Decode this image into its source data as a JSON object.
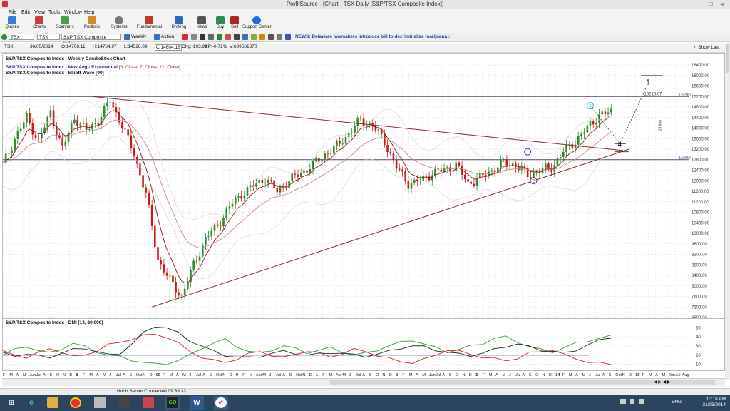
{
  "window": {
    "title": "ProfitSource - [Chart - TSX Daily [S&P/TSX Composite Index]]",
    "minimize": "–",
    "maximize": "□",
    "close": "×"
  },
  "menu": [
    "File",
    "Edit",
    "View",
    "Tools",
    "Window",
    "Help"
  ],
  "toolbar": [
    {
      "label": "Quotes",
      "icon": "quotes-icon",
      "color": "#3a7bd5"
    },
    {
      "label": "Charts",
      "icon": "charts-icon",
      "color": "#cc3b3b"
    },
    {
      "label": "Scanners",
      "icon": "scanners-icon",
      "color": "#4aa04a"
    },
    {
      "label": "Portfolio",
      "icon": "portfolio-icon",
      "color": "#d08a2b"
    },
    {
      "label": "Systems",
      "icon": "systems-icon",
      "color": "#777777"
    },
    {
      "label": "Fundamental",
      "icon": "fundamental-icon",
      "color": "#c0392b"
    },
    {
      "label": "Broking",
      "icon": "broking-icon",
      "color": "#2a6db0"
    },
    {
      "label": "News",
      "icon": "news-icon",
      "color": "#555555"
    },
    {
      "label": "Buy",
      "icon": "buy-icon",
      "color": "#2e8b57"
    },
    {
      "label": "Sell",
      "icon": "sell-icon",
      "color": "#b22222"
    },
    {
      "label": "Support Center",
      "icon": "support-icon",
      "color": "#1e6fd9"
    }
  ],
  "selector": {
    "symbol": "TSX",
    "exchange": "TSX",
    "name": "S&P/TSX Composite Index",
    "period": "Weekly",
    "action": "Action",
    "news": "NEWS: Delaware lawmakers introduce bill to decriminalize marijuana :"
  },
  "info": {
    "symbol": "TSX",
    "date": "30/05/2014",
    "open": "O:14708.11",
    "high": "H:14764.97",
    "low": "L:14528.09",
    "close": "C:14604.16",
    "change": "Chg:-103.94",
    "changepct": "CP:-0.71%",
    "volume": "V:699581370",
    "show_last": "Show Last"
  },
  "legends": {
    "l1": "S&P/TSX Composite Index - Weekly CandleStick Chart",
    "l2": "S&P/TSX Composite Index - Mov Avg - Exponential",
    "l2b": "[3, Close, 7, Close, 21, Close]",
    "l3": "S&P/TSX Composite Index - Elliott Wave [90]",
    "dmi": "S&P/TSX Composite Index - DMI [14, 20.000]"
  },
  "annotations": {
    "wave5": "5",
    "wave4": "4",
    "wave3": "3",
    "wave1": "1",
    "wave2": "2",
    "target": "15216.07",
    "datelabel": "26 Mar",
    "hline1": "15200",
    "hline2": "12800"
  },
  "colors": {
    "bull": "#2e8b2e",
    "bear": "#cc1a1a",
    "ema_fast": "#8b1a1a",
    "ema_slow": "#cc8888",
    "trend": "#8b2a2a",
    "hline": "#4a4a6a",
    "dmi_plus": "#2e9e2e",
    "dmi_minus": "#d02020",
    "adx": "#222222",
    "dmi_ref": "#2222aa"
  },
  "status": "Hubb Server Connected 09:39:33",
  "taskbar": {
    "lang": "ENG",
    "time": "10:18 AM",
    "date": "31/05/2014"
  },
  "chart_data": [
    {
      "type": "candlestick",
      "title": "S&P/TSX Composite Index - Weekly CandleStick Chart",
      "y_ticks": [
        6800,
        7200,
        7600,
        8000,
        8400,
        8800,
        9200,
        9600,
        10000,
        10400,
        10800,
        11200,
        11600,
        12000,
        12400,
        12800,
        13200,
        13600,
        14000,
        14400,
        14800,
        15200,
        15600,
        16000,
        16400
      ],
      "ylim": [
        6800,
        16400
      ],
      "x_ticks": [
        "F",
        "M",
        "A",
        "M",
        "Jun",
        "Jul",
        "A",
        "S",
        "O",
        "N",
        "D",
        "8",
        "F",
        "M",
        "A",
        "M",
        "J",
        "Jul",
        "A",
        "S",
        "Oct",
        "N",
        "D",
        "09",
        "F",
        "M",
        "A",
        "M",
        "J",
        "Jul",
        "A",
        "S",
        "Oct",
        "N",
        "D",
        "0",
        "F",
        "M",
        "Apr",
        "M",
        "J",
        "Jul",
        "A",
        "S",
        "Oct",
        "N",
        "D",
        "1",
        "F",
        "M",
        "Apr",
        "M",
        "J",
        "Jul",
        "A",
        "S",
        "O",
        "N",
        "D",
        "2",
        "F",
        "M",
        "A",
        "M",
        "Jun",
        "Jul",
        "A",
        "S",
        "O",
        "N",
        "D",
        "3",
        "F",
        "M",
        "A",
        "M",
        "J",
        "Jul",
        "A",
        "S",
        "O",
        "N",
        "D",
        "14",
        "F",
        "M",
        "A",
        "M",
        "J",
        "Jul",
        "A",
        "S",
        "Oct",
        "N",
        "D",
        "15",
        "F",
        "M",
        "A",
        "M",
        "Jun",
        "Jul",
        "Aug"
      ],
      "horizontal_lines": [
        15200,
        12800
      ],
      "close_path": [
        [
          0,
          12600
        ],
        [
          4,
          13600
        ],
        [
          8,
          14400
        ],
        [
          12,
          13500
        ],
        [
          16,
          14600
        ],
        [
          20,
          13200
        ],
        [
          24,
          14400
        ],
        [
          28,
          13900
        ],
        [
          32,
          14300
        ],
        [
          36,
          15050
        ],
        [
          40,
          14100
        ],
        [
          44,
          13000
        ],
        [
          48,
          11500
        ],
        [
          52,
          9000
        ],
        [
          56,
          8200
        ],
        [
          60,
          7600
        ],
        [
          64,
          8800
        ],
        [
          68,
          9800
        ],
        [
          72,
          10300
        ],
        [
          76,
          11000
        ],
        [
          80,
          11500
        ],
        [
          84,
          11800
        ],
        [
          88,
          12100
        ],
        [
          92,
          11600
        ],
        [
          96,
          12000
        ],
        [
          100,
          12300
        ],
        [
          104,
          12600
        ],
        [
          108,
          13000
        ],
        [
          112,
          13300
        ],
        [
          116,
          13800
        ],
        [
          120,
          14300
        ],
        [
          124,
          14100
        ],
        [
          128,
          13500
        ],
        [
          132,
          12500
        ],
        [
          136,
          11900
        ],
        [
          140,
          12000
        ],
        [
          144,
          12300
        ],
        [
          148,
          12400
        ],
        [
          152,
          12600
        ],
        [
          156,
          11900
        ],
        [
          160,
          12100
        ],
        [
          164,
          12400
        ],
        [
          168,
          12700
        ],
        [
          172,
          12600
        ],
        [
          176,
          12200
        ],
        [
          180,
          12400
        ],
        [
          184,
          12500
        ],
        [
          188,
          13100
        ],
        [
          192,
          13500
        ],
        [
          196,
          14000
        ],
        [
          200,
          14500
        ],
        [
          204,
          14600
        ]
      ],
      "series": [
        {
          "name": "Mov Avg - Exponential [3, Close, 7, Close, 21, Close]"
        }
      ],
      "elliott_wave": [
        {
          "label": "1",
          "x": 176,
          "y": 13100
        },
        {
          "label": "2",
          "x": 178,
          "y": 12000
        },
        {
          "label": "3",
          "x": 197,
          "y": 14850
        },
        {
          "label": "4",
          "x": 207,
          "y": 13400
        },
        {
          "label": "5",
          "x": 216,
          "y": 15600
        }
      ],
      "target_value": 15216.07,
      "trendlines": [
        {
          "from": [
            30,
            15200
          ],
          "to": [
            208,
            13150
          ]
        },
        {
          "from": [
            50,
            7200
          ],
          "to": [
            210,
            13200
          ]
        }
      ]
    },
    {
      "type": "line",
      "title": "S&P/TSX Composite Index - DMI [14, 20.000]",
      "y_ticks": [
        10,
        20,
        30,
        40,
        50
      ],
      "ylim": [
        5,
        55
      ],
      "reference_line": 20,
      "series": [
        {
          "name": "+DI",
          "values": [
            20,
            26,
            30,
            25,
            22,
            27,
            33,
            29,
            24,
            20,
            18,
            15,
            12,
            10,
            11,
            14,
            20,
            28,
            33,
            37,
            30,
            24,
            22,
            26,
            30,
            27,
            23,
            25,
            28,
            24,
            20,
            22,
            26,
            30,
            34,
            37,
            32,
            28,
            24,
            26,
            30,
            33,
            38,
            40,
            35,
            29,
            26,
            24,
            28,
            33,
            36,
            38,
            41
          ]
        },
        {
          "name": "-DI",
          "values": [
            24,
            20,
            18,
            22,
            27,
            24,
            18,
            20,
            25,
            31,
            34,
            38,
            41,
            43,
            40,
            33,
            24,
            18,
            14,
            12,
            16,
            21,
            24,
            20,
            17,
            21,
            25,
            22,
            18,
            22,
            26,
            24,
            20,
            16,
            13,
            12,
            15,
            20,
            26,
            24,
            21,
            18,
            16,
            14,
            17,
            22,
            24,
            26,
            20,
            16,
            13,
            11,
            10
          ]
        },
        {
          "name": "ADX",
          "values": [
            22,
            20,
            21,
            19,
            18,
            22,
            26,
            28,
            24,
            20,
            22,
            32,
            44,
            52,
            50,
            44,
            36,
            30,
            24,
            20,
            18,
            17,
            19,
            22,
            24,
            22,
            20,
            21,
            23,
            22,
            20,
            19,
            21,
            24,
            28,
            30,
            29,
            26,
            23,
            21,
            20,
            22,
            26,
            30,
            32,
            29,
            26,
            24,
            22,
            26,
            31,
            36,
            40
          ]
        }
      ]
    }
  ]
}
